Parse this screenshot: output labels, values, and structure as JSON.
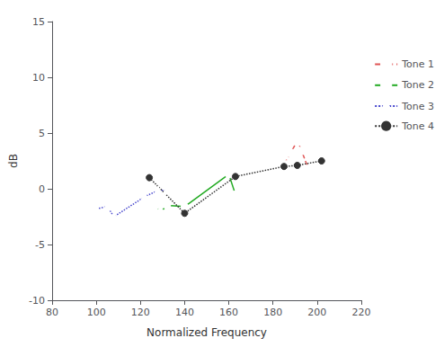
{
  "chart_data": {
    "type": "line",
    "xlabel": "Normalized Frequency",
    "ylabel": "dB",
    "series": [
      {
        "name": "Tone 1",
        "color": "#e05555",
        "marker": "square-open",
        "line_style": "dashed",
        "x": [
          185,
          188,
          191,
          193,
          196
        ],
        "values": [
          2.2,
          3.2,
          4.3,
          3.4,
          1.8
        ]
      },
      {
        "name": "Tone 2",
        "color": "#22aa22",
        "marker": "circle-open",
        "line_style": "solid",
        "x": [
          127,
          129,
          132,
          140,
          160,
          163
        ],
        "values": [
          -1.5,
          -2.1,
          -1.5,
          -1.6,
          1.3,
          -0.5
        ]
      },
      {
        "name": "Tone 3",
        "color": "#4444cc",
        "marker": "triangle-open",
        "line_style": "dotted",
        "x": [
          100,
          105,
          108,
          122,
          128,
          132
        ],
        "values": [
          -1.8,
          -1.6,
          -2.5,
          -0.7,
          -0.15,
          -0.15
        ]
      },
      {
        "name": "Tone 4",
        "color": "#333333",
        "marker": "circle",
        "line_style": "dotted",
        "x": [
          124,
          140,
          163,
          185,
          191,
          202
        ],
        "values": [
          1.0,
          -2.2,
          1.1,
          2.0,
          2.1,
          2.5
        ]
      }
    ],
    "xlim": [
      80,
      220
    ],
    "ylim": [
      -10,
      15
    ],
    "xticks": [
      80,
      100,
      120,
      140,
      160,
      180,
      200,
      220
    ],
    "yticks": [
      -10,
      -5,
      0,
      5,
      10,
      15
    ],
    "grid": false,
    "legend": "right"
  }
}
